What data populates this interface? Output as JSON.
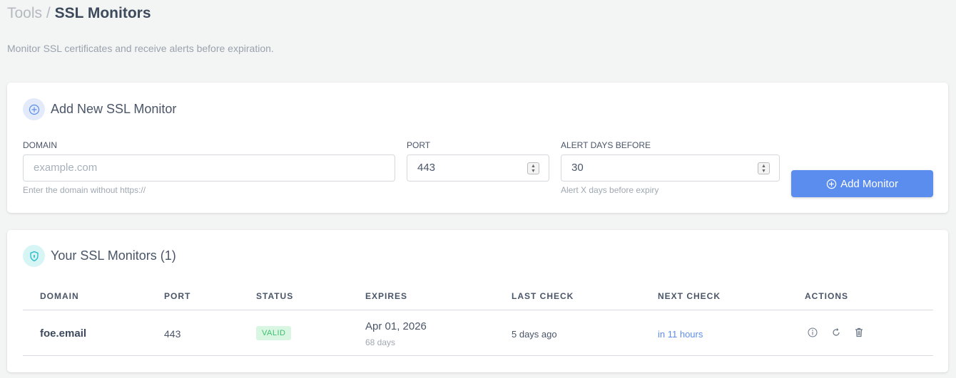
{
  "breadcrumb": {
    "parent": "Tools",
    "separator": "/",
    "current": "SSL Monitors"
  },
  "subtitle": "Monitor SSL certificates and receive alerts before expiration.",
  "add_form": {
    "title": "Add New SSL Monitor",
    "domain": {
      "label": "DOMAIN",
      "placeholder": "example.com",
      "value": "",
      "help": "Enter the domain without https://"
    },
    "port": {
      "label": "PORT",
      "value": "443"
    },
    "alert_days": {
      "label": "ALERT DAYS BEFORE",
      "value": "30",
      "help": "Alert X days before expiry"
    },
    "submit_label": "Add Monitor"
  },
  "monitors": {
    "title": "Your SSL Monitors (1)",
    "columns": [
      "DOMAIN",
      "PORT",
      "STATUS",
      "EXPIRES",
      "LAST CHECK",
      "NEXT CHECK",
      "ACTIONS"
    ],
    "rows": [
      {
        "domain": "foe.email",
        "port": "443",
        "status": "VALID",
        "expires": "Apr 01, 2026",
        "expires_in": "68 days",
        "last_check": "5 days ago",
        "next_check": "in 11 hours",
        "actions": [
          "info-icon",
          "refresh-icon",
          "trash-icon"
        ]
      }
    ]
  },
  "colors": {
    "accent": "#5b8def",
    "valid": "#3fbf6f",
    "link": "#5b8def"
  }
}
